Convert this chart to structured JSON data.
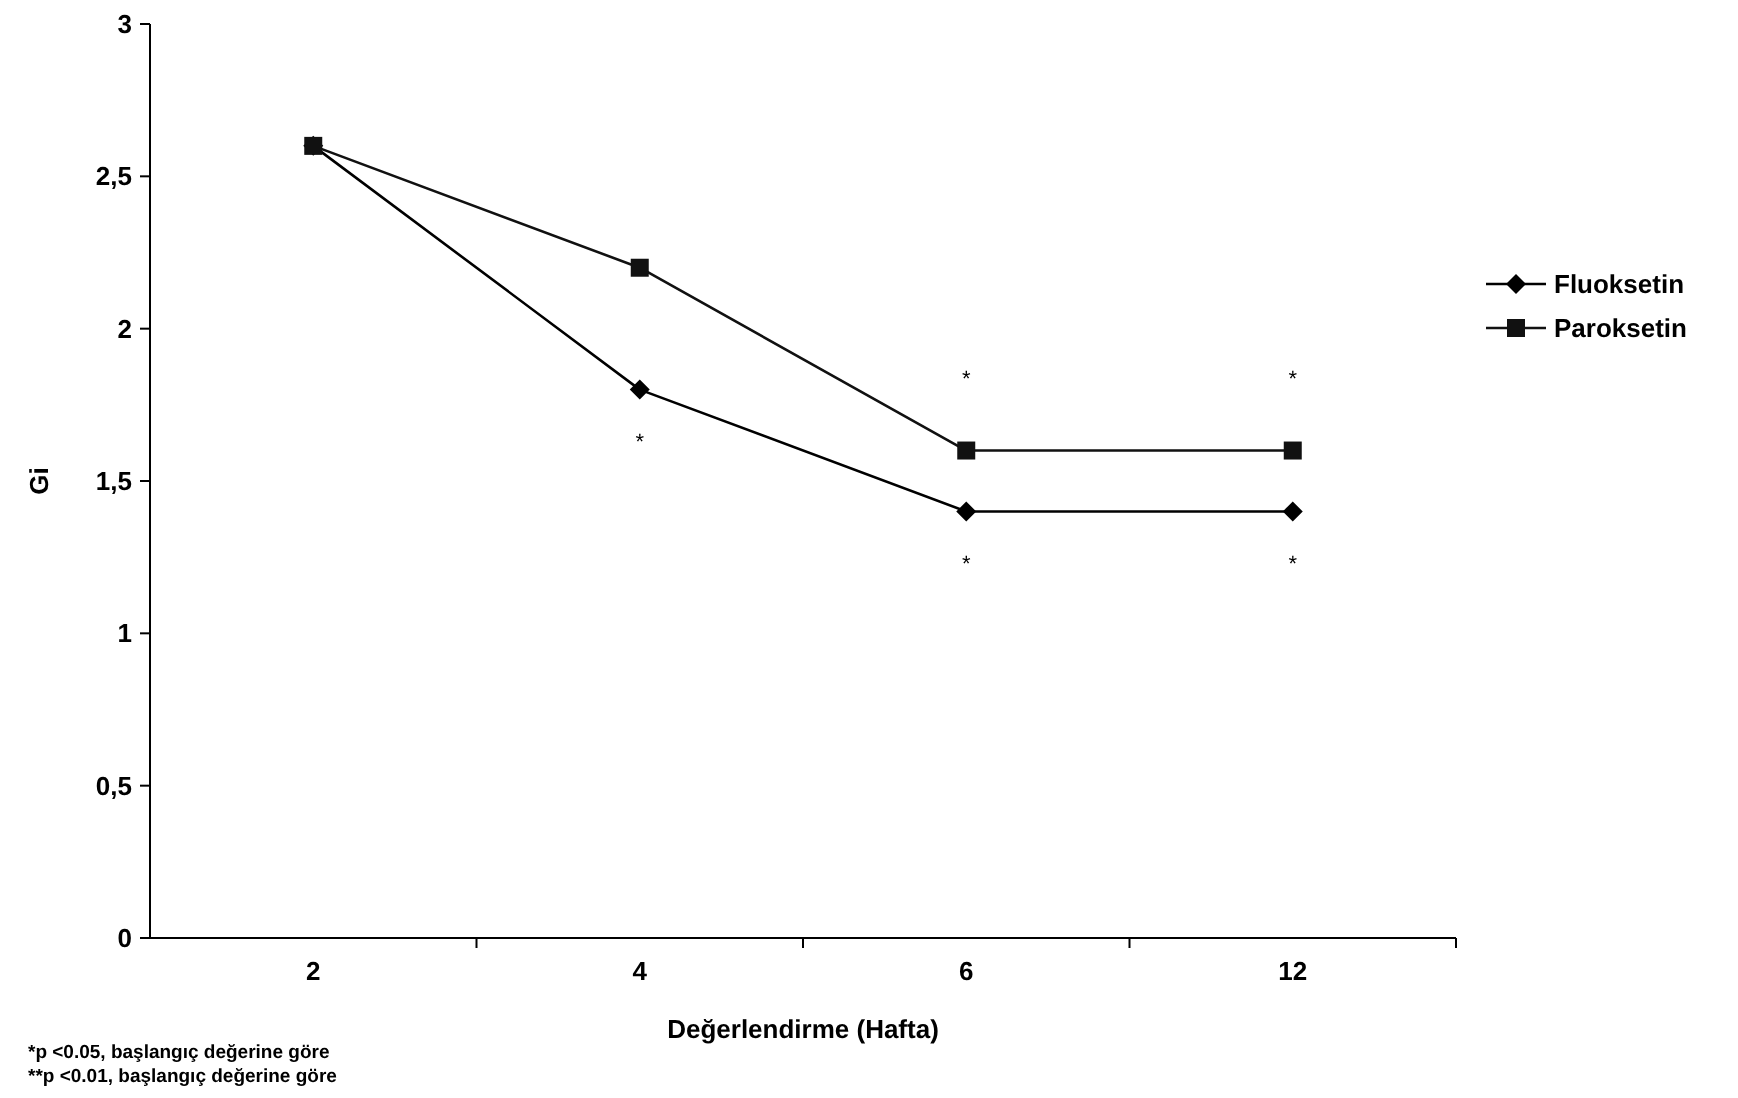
{
  "chart_data": {
    "type": "line",
    "xlabel": "Değerlendirme (Hafta)",
    "ylabel": "Gi",
    "categories": [
      "2",
      "4",
      "6",
      "12"
    ],
    "series": [
      {
        "name": "Fluoksetin",
        "color": "#000000",
        "marker": "diamond",
        "values": [
          2.6,
          1.8,
          1.4,
          1.4
        ]
      },
      {
        "name": "Paroksetin",
        "color": "#111111",
        "marker": "square",
        "values": [
          2.6,
          2.2,
          1.6,
          1.6
        ]
      }
    ],
    "ylim": [
      0,
      3
    ],
    "yticks": [
      0,
      {
        "value": 0.5,
        "label": "0,5"
      },
      1,
      {
        "value": 1.5,
        "label": "1,5"
      },
      2,
      {
        "value": 2.5,
        "label": "2,5"
      },
      3
    ],
    "grid": false,
    "legend": "right",
    "line_style": "solid",
    "annotations": [
      {
        "text": "*",
        "x": "4",
        "y": 1.8
      },
      {
        "text": "*",
        "x": "6",
        "y": 1.6
      },
      {
        "text": "*",
        "x": "6",
        "y": 1.4
      },
      {
        "text": "*",
        "x": "12",
        "y": 1.6
      },
      {
        "text": "*",
        "x": "12",
        "y": 1.4
      },
      "*p <0.05, başlangıç değerine göre",
      "**p <0.01, başlangıç değerine göre"
    ]
  }
}
